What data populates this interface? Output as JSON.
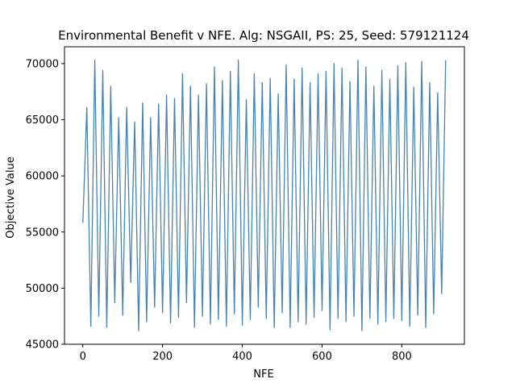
{
  "chart_data": {
    "type": "line",
    "title": "Environmental Benefit v NFE. Alg: NSGAII, PS: 25, Seed: 579121124",
    "xlabel": "NFE",
    "ylabel": "Objective Value",
    "xlim": [
      -46,
      957
    ],
    "ylim": [
      45000,
      71500
    ],
    "xticks": [
      0,
      200,
      400,
      600,
      800
    ],
    "yticks": [
      45000,
      50000,
      55000,
      60000,
      65000,
      70000
    ],
    "xtick_labels": [
      "0",
      "200",
      "400",
      "600",
      "800"
    ],
    "ytick_labels": [
      "45000",
      "50000",
      "55000",
      "60000",
      "65000",
      "70000"
    ],
    "grid": false,
    "line_color": "#4682b4",
    "series": [
      {
        "x": [
          0,
          10,
          20,
          30,
          40,
          50,
          60,
          70,
          80,
          90,
          100,
          110,
          120,
          130,
          140,
          150,
          160,
          170,
          180,
          190,
          200,
          210,
          220,
          230,
          240,
          250,
          260,
          270,
          280,
          290,
          300,
          310,
          320,
          330,
          340,
          350,
          360,
          370,
          380,
          390,
          400,
          410,
          420,
          430,
          440,
          450,
          460,
          470,
          480,
          490,
          500,
          510,
          520,
          530,
          540,
          550,
          560,
          570,
          580,
          590,
          600,
          610,
          620,
          630,
          640,
          650,
          660,
          670,
          680,
          690,
          700,
          710,
          720,
          730,
          740,
          750,
          760,
          770,
          780,
          790,
          800,
          810,
          820,
          830,
          840,
          850,
          860,
          870,
          880,
          890,
          900,
          910
        ],
        "values": [
          55800,
          66100,
          46600,
          70300,
          47500,
          69400,
          46500,
          68000,
          48700,
          65200,
          47600,
          66100,
          50500,
          64800,
          46200,
          66500,
          47000,
          65200,
          48300,
          66400,
          47800,
          67200,
          46900,
          66900,
          47400,
          69100,
          48700,
          68000,
          46500,
          67200,
          47500,
          68200,
          46800,
          69700,
          47200,
          68500,
          46600,
          69300,
          47700,
          70300,
          46700,
          66800,
          47200,
          69100,
          48300,
          68300,
          47300,
          68700,
          46500,
          67300,
          47800,
          69900,
          46500,
          68600,
          47000,
          69600,
          46800,
          68300,
          47400,
          69100,
          48000,
          69300,
          46300,
          70000,
          47300,
          69600,
          47000,
          68400,
          47500,
          70300,
          46200,
          69700,
          47300,
          68000,
          46800,
          69400,
          47000,
          68600,
          47300,
          69800,
          47100,
          70100,
          46600,
          67900,
          47600,
          70200,
          46500,
          68300,
          47700,
          67400,
          49500,
          70300
        ]
      }
    ]
  }
}
